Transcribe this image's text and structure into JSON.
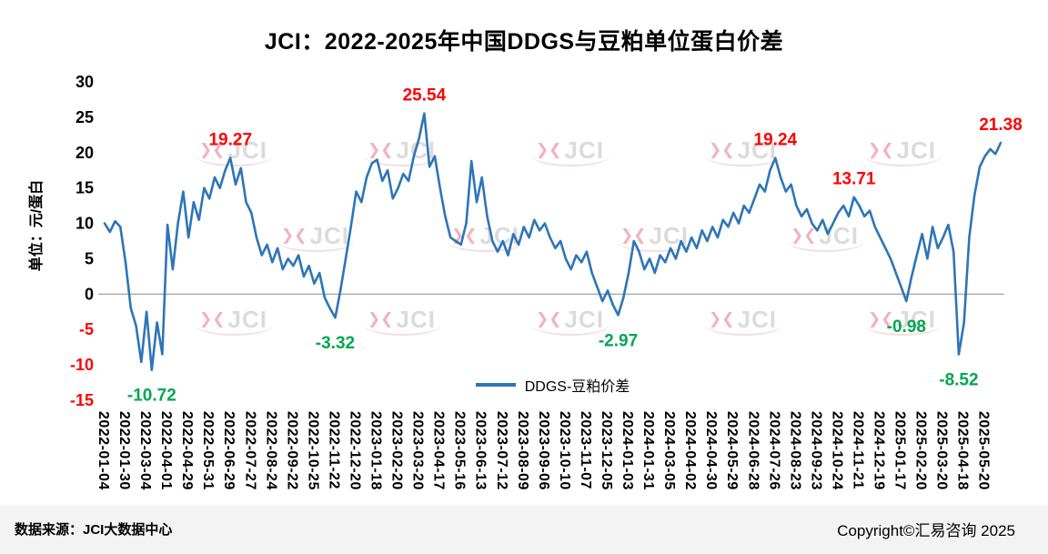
{
  "watermark": {
    "text": "JCI",
    "logo_icon": "jci-logo"
  },
  "footer": {
    "source": "数据来源：JCI大数据中心",
    "copyright": "Copyright©汇易咨询 2025"
  },
  "chart_data": {
    "type": "line",
    "title": "JCI：2022-2025年中国DDGS与豆粕单位蛋白价差",
    "ylabel": "单位：元/蛋白",
    "xlabel": "",
    "ylim": [
      -15,
      30
    ],
    "y_ticks": [
      30,
      25,
      20,
      15,
      10,
      5,
      0,
      -5,
      -10,
      -15
    ],
    "grid": false,
    "zero_line": true,
    "legend_position": "bottom-center",
    "points_per_tick": 4,
    "colors": {
      "series": "#2e75b6",
      "positive_annotation": "#ff0000",
      "negative_annotation": "#00a651",
      "negative_tick": "#ff0000",
      "axis_line": "#9a9a9a"
    },
    "x_tick_labels": [
      "2022-01-04",
      "2022-01-30",
      "2022-03-04",
      "2022-04-01",
      "2022-04-29",
      "2022-05-31",
      "2022-06-29",
      "2022-07-27",
      "2022-08-24",
      "2022-09-22",
      "2022-10-25",
      "2022-11-22",
      "2022-12-20",
      "2023-01-18",
      "2023-02-20",
      "2023-03-20",
      "2023-04-17",
      "2023-05-16",
      "2023-06-13",
      "2023-07-12",
      "2023-08-09",
      "2023-09-06",
      "2023-10-10",
      "2023-11-07",
      "2023-12-05",
      "2024-01-03",
      "2024-01-31",
      "2024-03-05",
      "2024-04-02",
      "2024-04-30",
      "2024-05-29",
      "2024-06-28",
      "2024-07-26",
      "2024-08-23",
      "2024-09-23",
      "2024-10-24",
      "2024-11-21",
      "2024-12-19",
      "2025-01-17",
      "2025-02-20",
      "2025-03-20",
      "2025-04-18",
      "2025-05-20"
    ],
    "series": [
      {
        "name": "DDGS-豆粕价差",
        "color": "#2e75b6",
        "values": [
          10.0,
          8.8,
          10.3,
          9.5,
          4.5,
          -2.0,
          -4.5,
          -9.6,
          -2.5,
          -10.72,
          -4.0,
          -8.5,
          9.8,
          3.5,
          10.0,
          14.5,
          8.0,
          13.0,
          10.5,
          15.0,
          13.5,
          16.5,
          15.0,
          17.5,
          19.27,
          15.5,
          17.8,
          13.0,
          11.5,
          8.0,
          5.5,
          7.0,
          4.5,
          6.5,
          3.5,
          5.0,
          4.0,
          5.5,
          2.5,
          4.0,
          1.5,
          3.0,
          -0.5,
          -2.0,
          -3.32,
          0.5,
          5.0,
          9.5,
          14.5,
          13.0,
          16.5,
          18.5,
          19.0,
          16.0,
          17.5,
          13.5,
          15.0,
          17.0,
          16.0,
          19.5,
          22.0,
          25.54,
          18.0,
          19.5,
          15.0,
          11.0,
          8.0,
          7.5,
          7.0,
          10.0,
          18.8,
          13.0,
          16.5,
          11.0,
          7.5,
          6.0,
          7.5,
          5.5,
          8.5,
          7.0,
          9.5,
          8.0,
          10.5,
          9.0,
          10.0,
          8.0,
          6.5,
          7.5,
          5.0,
          3.5,
          5.5,
          4.5,
          6.0,
          3.0,
          1.0,
          -1.0,
          0.5,
          -1.5,
          -2.97,
          -0.5,
          3.0,
          7.5,
          6.0,
          3.5,
          5.0,
          3.0,
          5.5,
          4.5,
          6.5,
          5.0,
          7.5,
          6.0,
          8.0,
          6.5,
          9.0,
          7.5,
          9.5,
          8.0,
          10.5,
          9.5,
          11.5,
          10.0,
          12.5,
          11.5,
          13.5,
          15.5,
          14.5,
          17.5,
          19.24,
          16.5,
          14.5,
          15.5,
          12.5,
          11.0,
          12.0,
          10.0,
          9.0,
          10.5,
          8.5,
          10.0,
          11.5,
          12.5,
          11.0,
          13.71,
          12.5,
          11.0,
          11.8,
          9.5,
          8.0,
          6.5,
          5.0,
          3.0,
          1.0,
          -0.98,
          2.5,
          5.5,
          8.5,
          5.0,
          9.5,
          6.5,
          8.0,
          9.8,
          6.0,
          -8.52,
          -4.0,
          8.0,
          14.0,
          18.0,
          19.5,
          20.5,
          19.8,
          21.38
        ]
      }
    ],
    "annotations": [
      {
        "text": "19.27",
        "index": 24,
        "value": 19.27,
        "placement": "above",
        "color": "#ff0000"
      },
      {
        "text": "25.54",
        "index": 61,
        "value": 25.54,
        "placement": "above",
        "color": "#ff0000"
      },
      {
        "text": "19.24",
        "index": 128,
        "value": 19.24,
        "placement": "above",
        "color": "#ff0000"
      },
      {
        "text": "13.71",
        "index": 143,
        "value": 13.71,
        "placement": "above",
        "color": "#ff0000"
      },
      {
        "text": "21.38",
        "index": 171,
        "value": 21.38,
        "placement": "above",
        "color": "#ff0000"
      },
      {
        "text": "-10.72",
        "index": 9,
        "value": -10.72,
        "placement": "below",
        "color": "#00a651"
      },
      {
        "text": "-3.32",
        "index": 44,
        "value": -3.32,
        "placement": "below",
        "color": "#00a651"
      },
      {
        "text": "-2.97",
        "index": 98,
        "value": -2.97,
        "placement": "below",
        "color": "#00a651"
      },
      {
        "text": "-0.98",
        "index": 153,
        "value": -0.98,
        "placement": "below",
        "color": "#00a651"
      },
      {
        "text": "-8.52",
        "index": 163,
        "value": -8.52,
        "placement": "below",
        "color": "#00a651"
      }
    ]
  }
}
